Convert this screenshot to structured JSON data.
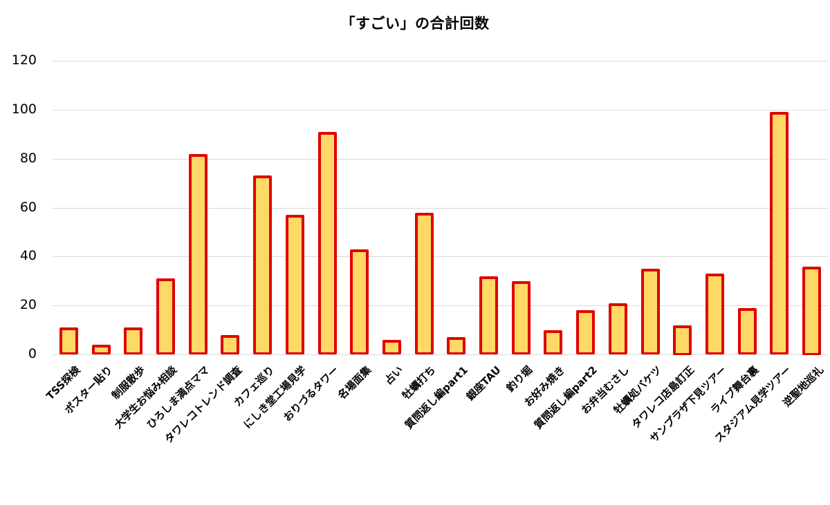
{
  "chart_data": {
    "type": "bar",
    "title": "「すごい」の合計回数",
    "xlabel": "",
    "ylabel": "",
    "ylim": [
      0,
      120
    ],
    "yticks": [
      0,
      20,
      40,
      60,
      80,
      100,
      120
    ],
    "grid": true,
    "legend": null,
    "colors": {
      "fill": "#ffd966",
      "border": "#e00000",
      "grid": "#d9d9d9"
    },
    "categories": [
      "TSS探検",
      "ポスター貼り",
      "制服散歩",
      "大学生お悩み相談",
      "ひろしま満点ママ",
      "タワレコトレンド調査",
      "カフェ巡り",
      "にしき堂工場見学",
      "おりづるタワー",
      "名場面集",
      "占い",
      "牡蠣打ち",
      "質問返し編part1",
      "銀座TAU",
      "釣り堀",
      "お好み焼き",
      "質問返し編part2",
      "お弁当むさし",
      "牡蠣処バケツ",
      "タワレコ店島訂正",
      "サンプラザ下見ツアー",
      "ライブ舞台裏",
      "スタジアム見学ツアー",
      "逆聖地巡礼"
    ],
    "values": [
      11,
      4,
      11,
      31,
      82,
      8,
      73,
      57,
      91,
      43,
      6,
      58,
      7,
      32,
      30,
      10,
      18,
      21,
      35,
      12,
      33,
      19,
      99,
      36
    ]
  }
}
